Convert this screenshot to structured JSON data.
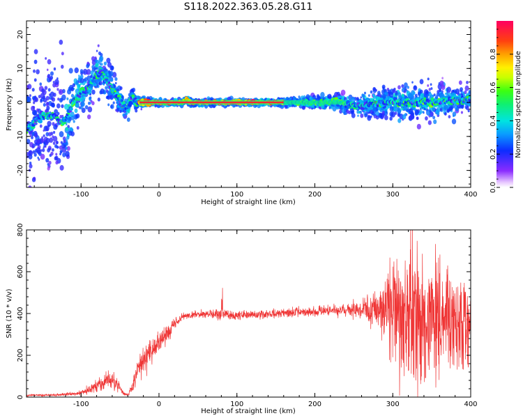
{
  "title": "S118.2022.363.05.28.G11",
  "chart_data": [
    {
      "type": "heatmap",
      "name": "spectrogram",
      "xlabel": "Height of straight line (km)",
      "ylabel": "Frequency (Hz)",
      "xlim": [
        -170,
        400
      ],
      "ylim": [
        -25,
        24
      ],
      "xticks": [
        -100,
        0,
        100,
        200,
        300,
        400
      ],
      "yticks": [
        -20,
        -10,
        0,
        10,
        20
      ],
      "colorbar_label": "Normalized spectral amplitude",
      "colorbar_range": [
        0,
        1
      ],
      "colorbar_ticks": [
        "0.0",
        "0.2",
        "0.4",
        "0.6",
        "0.8"
      ],
      "ridge": {
        "x": [
          -170,
          -150,
          -135,
          -125,
          -120,
          -110,
          -100,
          -90,
          -80,
          -75,
          -70,
          -65,
          -60,
          -55,
          -50,
          -45,
          -40,
          -35,
          -30,
          -25,
          -20,
          0,
          30,
          35,
          40,
          50,
          100,
          150,
          200,
          230,
          250,
          300,
          350,
          400
        ],
        "y": [
          -8,
          -4,
          -4,
          -6,
          -5,
          0,
          3,
          4,
          8,
          9,
          7,
          6,
          4,
          2,
          1,
          -1,
          -2,
          2,
          0,
          0,
          0,
          0,
          0,
          1,
          0,
          0,
          0,
          0,
          0,
          0,
          -1,
          0,
          0,
          1
        ]
      },
      "spread": {
        "x": [
          -170,
          -125,
          -100,
          -75,
          -50,
          -30,
          0,
          150,
          200,
          250,
          300,
          350,
          400
        ],
        "hz": [
          14,
          12,
          5,
          5,
          3,
          1.5,
          0.6,
          0.6,
          1.2,
          2,
          4,
          4,
          3
        ]
      }
    },
    {
      "type": "line",
      "name": "snr",
      "xlabel": "Height of straight line (km)",
      "ylabel": "SNR (10 * v/v)",
      "xlim": [
        -170,
        400
      ],
      "ylim": [
        0,
        800
      ],
      "xticks": [
        -100,
        0,
        100,
        200,
        300,
        400
      ],
      "yticks": [
        0,
        200,
        400,
        600,
        800
      ],
      "color": "#ef3535",
      "envelope": {
        "x": [
          -170,
          -130,
          -100,
          -85,
          -75,
          -65,
          -55,
          -45,
          -40,
          -35,
          -30,
          -25,
          -20,
          -10,
          0,
          10,
          20,
          30,
          50,
          80,
          100,
          150,
          200,
          250,
          280,
          300,
          320,
          340,
          360,
          380,
          400
        ],
        "mean": [
          8,
          10,
          20,
          45,
          60,
          90,
          70,
          15,
          10,
          40,
          110,
          160,
          180,
          220,
          260,
          300,
          350,
          385,
          395,
          395,
          390,
          400,
          410,
          420,
          430,
          400,
          380,
          360,
          360,
          350,
          340
        ],
        "amp": [
          5,
          6,
          10,
          25,
          30,
          40,
          30,
          8,
          6,
          25,
          50,
          55,
          60,
          60,
          55,
          40,
          25,
          15,
          15,
          25,
          20,
          20,
          20,
          35,
          90,
          220,
          330,
          330,
          280,
          220,
          160
        ]
      }
    }
  ]
}
